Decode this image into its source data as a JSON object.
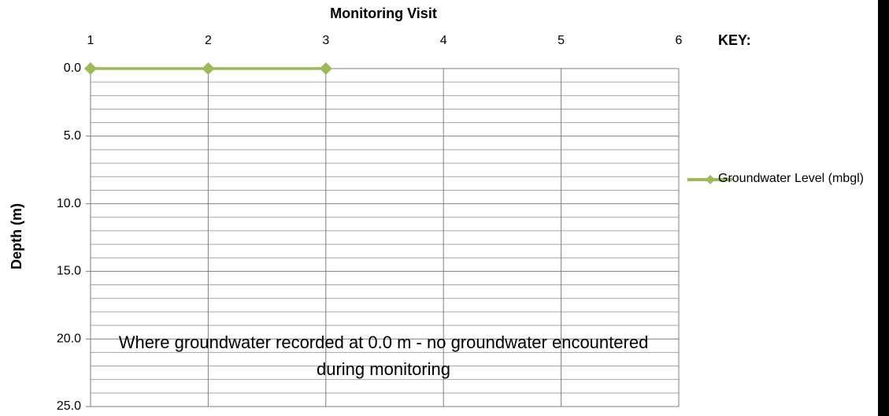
{
  "chart_data": {
    "type": "line",
    "title": "Monitoring Visit",
    "y_label": "Depth (m)",
    "legend_title": "KEY:",
    "annotation": "Where groundwater recorded at 0.0 m - no groundwater encountered during monitoring",
    "x": [
      1,
      2,
      3
    ],
    "series": [
      {
        "name": "Groundwater Level (mbgl)",
        "color": "#9bbb59",
        "values": [
          0,
          0,
          0
        ]
      }
    ],
    "xlim": [
      1,
      6
    ],
    "xticks": [
      1,
      2,
      3,
      4,
      5,
      6
    ],
    "ylim": [
      0,
      25
    ],
    "y_inverted": true,
    "yticks": [
      {
        "value": 0,
        "label": "0.0"
      },
      {
        "value": 5,
        "label": "5.0"
      },
      {
        "value": 10,
        "label": "10.0"
      },
      {
        "value": 15,
        "label": "15.0"
      },
      {
        "value": 20,
        "label": "20.0"
      },
      {
        "value": 25,
        "label": "25.0"
      }
    ],
    "yminorticks": [
      1,
      2,
      3,
      4,
      6,
      7,
      8,
      9,
      11,
      12,
      13,
      14,
      16,
      17,
      18,
      19,
      21,
      22,
      23,
      24
    ],
    "grid": true,
    "legend": "right"
  }
}
